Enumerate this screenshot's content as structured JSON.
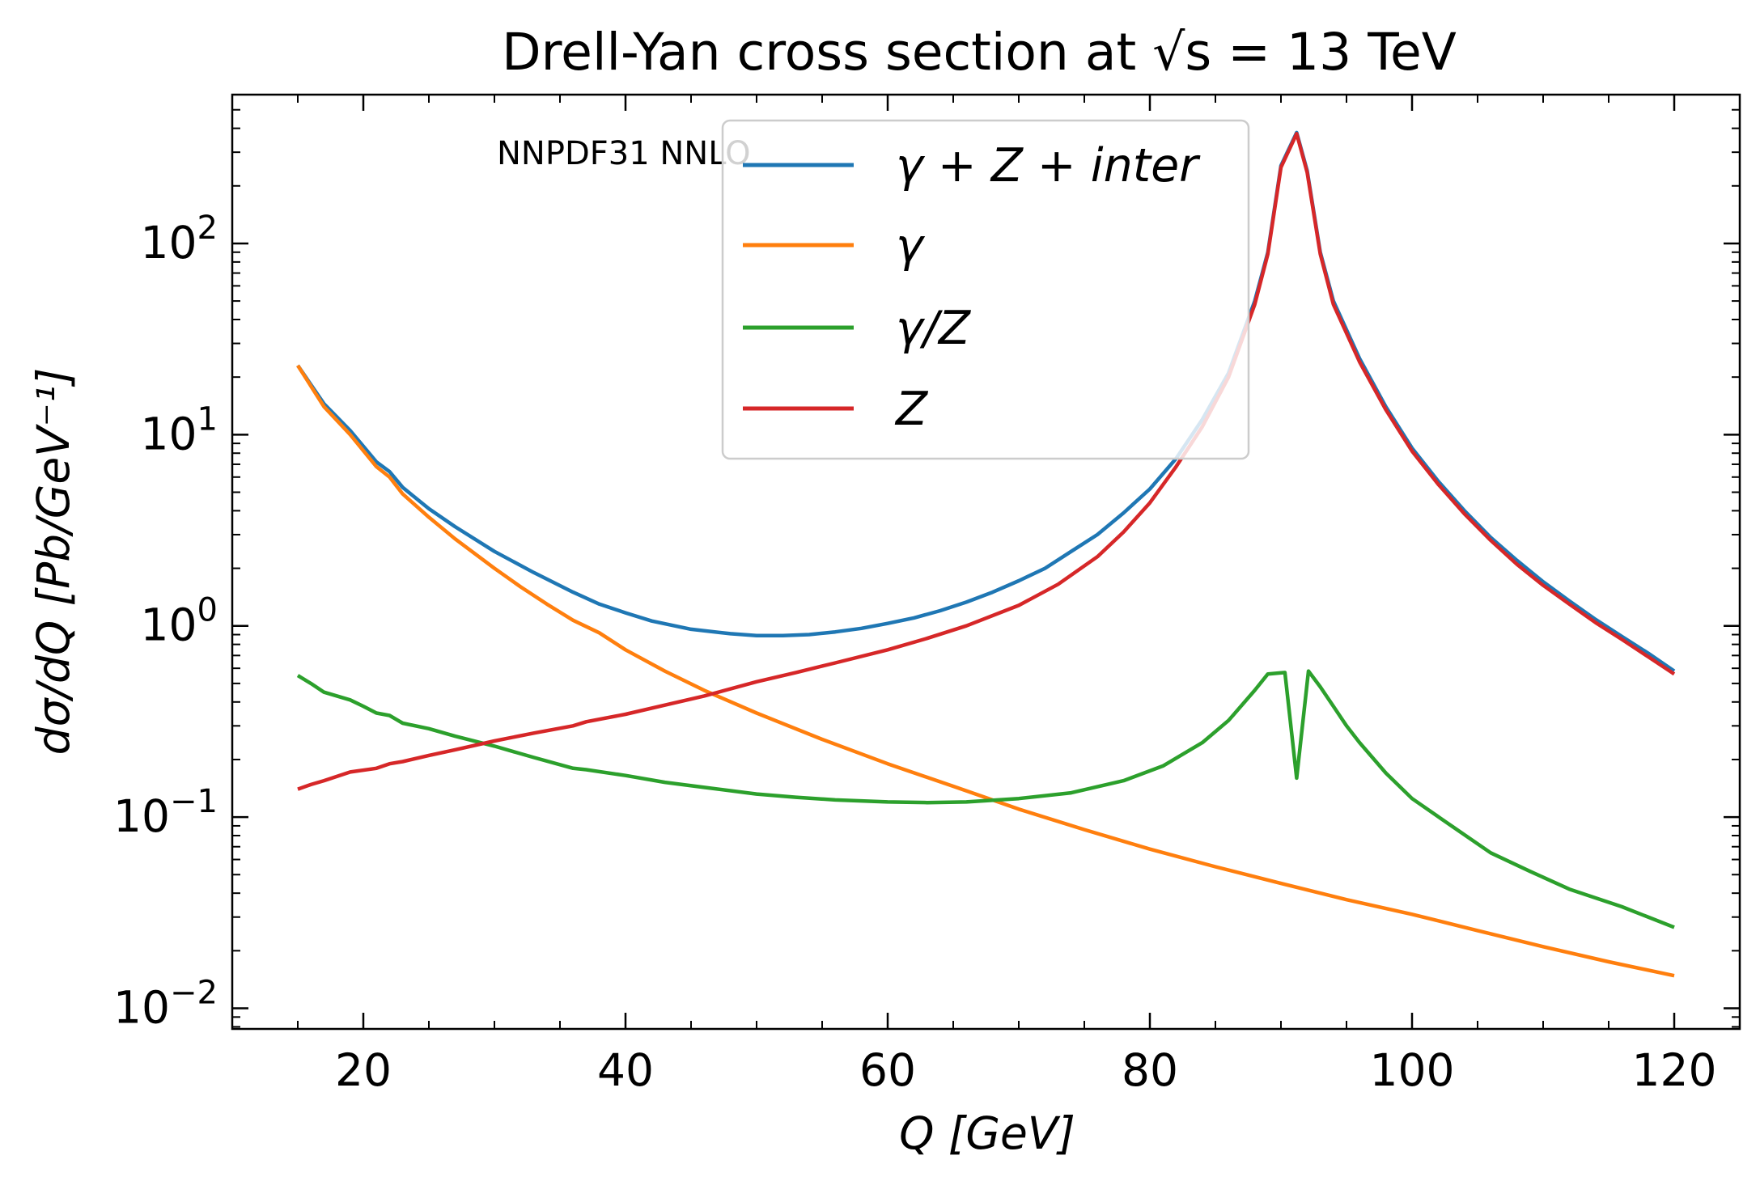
{
  "chart_data": {
    "type": "line",
    "title": "Drell-Yan cross section at √s = 13 TeV",
    "xlabel": "Q [GeV]",
    "ylabel": "dσ/dQ [Pb/GeV⁻¹]",
    "annotation": "NNPDF31 NNLO",
    "xlim": [
      10,
      125
    ],
    "ylim": [
      0.0078,
      600
    ],
    "yscale": "log",
    "grid": false,
    "legend_position": "top-center",
    "x_ticks": [
      20,
      40,
      60,
      80,
      100,
      120
    ],
    "x_tick_labels": [
      "20",
      "40",
      "60",
      "80",
      "100",
      "120"
    ],
    "y_ticks": [
      0.01,
      0.1,
      1,
      10,
      100
    ],
    "y_tick_labels": [
      {
        "base": "10",
        "exp": "−2"
      },
      {
        "base": "10",
        "exp": "−1"
      },
      {
        "base": "10",
        "exp": "0"
      },
      {
        "base": "10",
        "exp": "1"
      },
      {
        "base": "10",
        "exp": "2"
      }
    ],
    "series": [
      {
        "name": "γ + Z + inter",
        "color": "#1f77b4",
        "points": [
          [
            15,
            23
          ],
          [
            17,
            14.5
          ],
          [
            19,
            10.5
          ],
          [
            21,
            7.2
          ],
          [
            22,
            6.4
          ],
          [
            23,
            5.3
          ],
          [
            25,
            4.1
          ],
          [
            27,
            3.3
          ],
          [
            30,
            2.45
          ],
          [
            33,
            1.9
          ],
          [
            36,
            1.5
          ],
          [
            38,
            1.3
          ],
          [
            40,
            1.17
          ],
          [
            42,
            1.06
          ],
          [
            45,
            0.96
          ],
          [
            48,
            0.91
          ],
          [
            50,
            0.89
          ],
          [
            52,
            0.89
          ],
          [
            54,
            0.9
          ],
          [
            56,
            0.93
          ],
          [
            58,
            0.97
          ],
          [
            60,
            1.03
          ],
          [
            62,
            1.1
          ],
          [
            64,
            1.2
          ],
          [
            66,
            1.33
          ],
          [
            68,
            1.5
          ],
          [
            70,
            1.72
          ],
          [
            72,
            2.0
          ],
          [
            74,
            2.45
          ],
          [
            76,
            3.0
          ],
          [
            78,
            3.9
          ],
          [
            80,
            5.2
          ],
          [
            82,
            7.5
          ],
          [
            84,
            12
          ],
          [
            86,
            21
          ],
          [
            88,
            50
          ],
          [
            89,
            90
          ],
          [
            90,
            255
          ],
          [
            91.2,
            380
          ],
          [
            92,
            240
          ],
          [
            93,
            90
          ],
          [
            94,
            50
          ],
          [
            96,
            25
          ],
          [
            98,
            14
          ],
          [
            100,
            8.5
          ],
          [
            102,
            5.7
          ],
          [
            104,
            4.0
          ],
          [
            106,
            2.9
          ],
          [
            108,
            2.2
          ],
          [
            110,
            1.7
          ],
          [
            112,
            1.35
          ],
          [
            114,
            1.08
          ],
          [
            116,
            0.88
          ],
          [
            118,
            0.72
          ],
          [
            120,
            0.58
          ]
        ]
      },
      {
        "name": "γ",
        "color": "#ff7f0e",
        "points": [
          [
            15,
            23
          ],
          [
            17,
            14
          ],
          [
            19,
            10
          ],
          [
            21,
            6.8
          ],
          [
            22,
            6
          ],
          [
            23,
            4.9
          ],
          [
            25,
            3.7
          ],
          [
            27,
            2.85
          ],
          [
            30,
            2.0
          ],
          [
            32,
            1.6
          ],
          [
            34,
            1.3
          ],
          [
            36,
            1.07
          ],
          [
            38,
            0.92
          ],
          [
            40,
            0.75
          ],
          [
            43,
            0.58
          ],
          [
            46,
            0.46
          ],
          [
            50,
            0.35
          ],
          [
            55,
            0.255
          ],
          [
            60,
            0.19
          ],
          [
            65,
            0.145
          ],
          [
            70,
            0.11
          ],
          [
            75,
            0.086
          ],
          [
            80,
            0.068
          ],
          [
            85,
            0.055
          ],
          [
            90,
            0.045
          ],
          [
            95,
            0.037
          ],
          [
            100,
            0.031
          ],
          [
            105,
            0.0255
          ],
          [
            110,
            0.021
          ],
          [
            115,
            0.0175
          ],
          [
            120,
            0.0148
          ]
        ]
      },
      {
        "name": "γ/Z",
        "color": "#2ca02c",
        "points": [
          [
            15,
            0.55
          ],
          [
            16,
            0.5
          ],
          [
            17,
            0.45
          ],
          [
            19,
            0.41
          ],
          [
            20,
            0.38
          ],
          [
            21,
            0.35
          ],
          [
            22,
            0.34
          ],
          [
            23,
            0.31
          ],
          [
            25,
            0.29
          ],
          [
            27,
            0.265
          ],
          [
            30,
            0.235
          ],
          [
            33,
            0.205
          ],
          [
            36,
            0.18
          ],
          [
            37,
            0.177
          ],
          [
            40,
            0.165
          ],
          [
            43,
            0.152
          ],
          [
            46,
            0.143
          ],
          [
            50,
            0.132
          ],
          [
            53,
            0.127
          ],
          [
            56,
            0.123
          ],
          [
            60,
            0.12
          ],
          [
            63,
            0.119
          ],
          [
            66,
            0.12
          ],
          [
            70,
            0.125
          ],
          [
            74,
            0.134
          ],
          [
            78,
            0.155
          ],
          [
            81,
            0.185
          ],
          [
            84,
            0.245
          ],
          [
            86,
            0.32
          ],
          [
            88,
            0.46
          ],
          [
            89,
            0.56
          ],
          [
            90.3,
            0.57
          ],
          [
            91.2,
            0.16
          ],
          [
            92.1,
            0.58
          ],
          [
            93,
            0.48
          ],
          [
            94,
            0.38
          ],
          [
            95,
            0.3
          ],
          [
            96,
            0.245
          ],
          [
            98,
            0.17
          ],
          [
            100,
            0.125
          ],
          [
            103,
            0.09
          ],
          [
            106,
            0.065
          ],
          [
            109,
            0.052
          ],
          [
            112,
            0.042
          ],
          [
            116,
            0.034
          ],
          [
            120,
            0.0265
          ]
        ]
      },
      {
        "name": "Z",
        "color": "#d62728",
        "points": [
          [
            15,
            0.14
          ],
          [
            16,
            0.148
          ],
          [
            17,
            0.155
          ],
          [
            19,
            0.172
          ],
          [
            21,
            0.18
          ],
          [
            22,
            0.19
          ],
          [
            23,
            0.195
          ],
          [
            25,
            0.21
          ],
          [
            27,
            0.225
          ],
          [
            30,
            0.25
          ],
          [
            33,
            0.275
          ],
          [
            36,
            0.3
          ],
          [
            37,
            0.315
          ],
          [
            40,
            0.345
          ],
          [
            43,
            0.385
          ],
          [
            46,
            0.43
          ],
          [
            50,
            0.51
          ],
          [
            53,
            0.57
          ],
          [
            56,
            0.64
          ],
          [
            60,
            0.75
          ],
          [
            63,
            0.86
          ],
          [
            66,
            1.0
          ],
          [
            70,
            1.28
          ],
          [
            73,
            1.65
          ],
          [
            76,
            2.3
          ],
          [
            78,
            3.1
          ],
          [
            80,
            4.4
          ],
          [
            82,
            6.8
          ],
          [
            84,
            11
          ],
          [
            86,
            20
          ],
          [
            88,
            48
          ],
          [
            89,
            88
          ],
          [
            90,
            250
          ],
          [
            91.2,
            375
          ],
          [
            92,
            235
          ],
          [
            93,
            88
          ],
          [
            94,
            48
          ],
          [
            96,
            24
          ],
          [
            98,
            13.5
          ],
          [
            100,
            8.2
          ],
          [
            102,
            5.5
          ],
          [
            104,
            3.85
          ],
          [
            106,
            2.8
          ],
          [
            108,
            2.1
          ],
          [
            110,
            1.63
          ],
          [
            112,
            1.3
          ],
          [
            114,
            1.04
          ],
          [
            116,
            0.85
          ],
          [
            118,
            0.69
          ],
          [
            120,
            0.56
          ]
        ]
      }
    ]
  }
}
